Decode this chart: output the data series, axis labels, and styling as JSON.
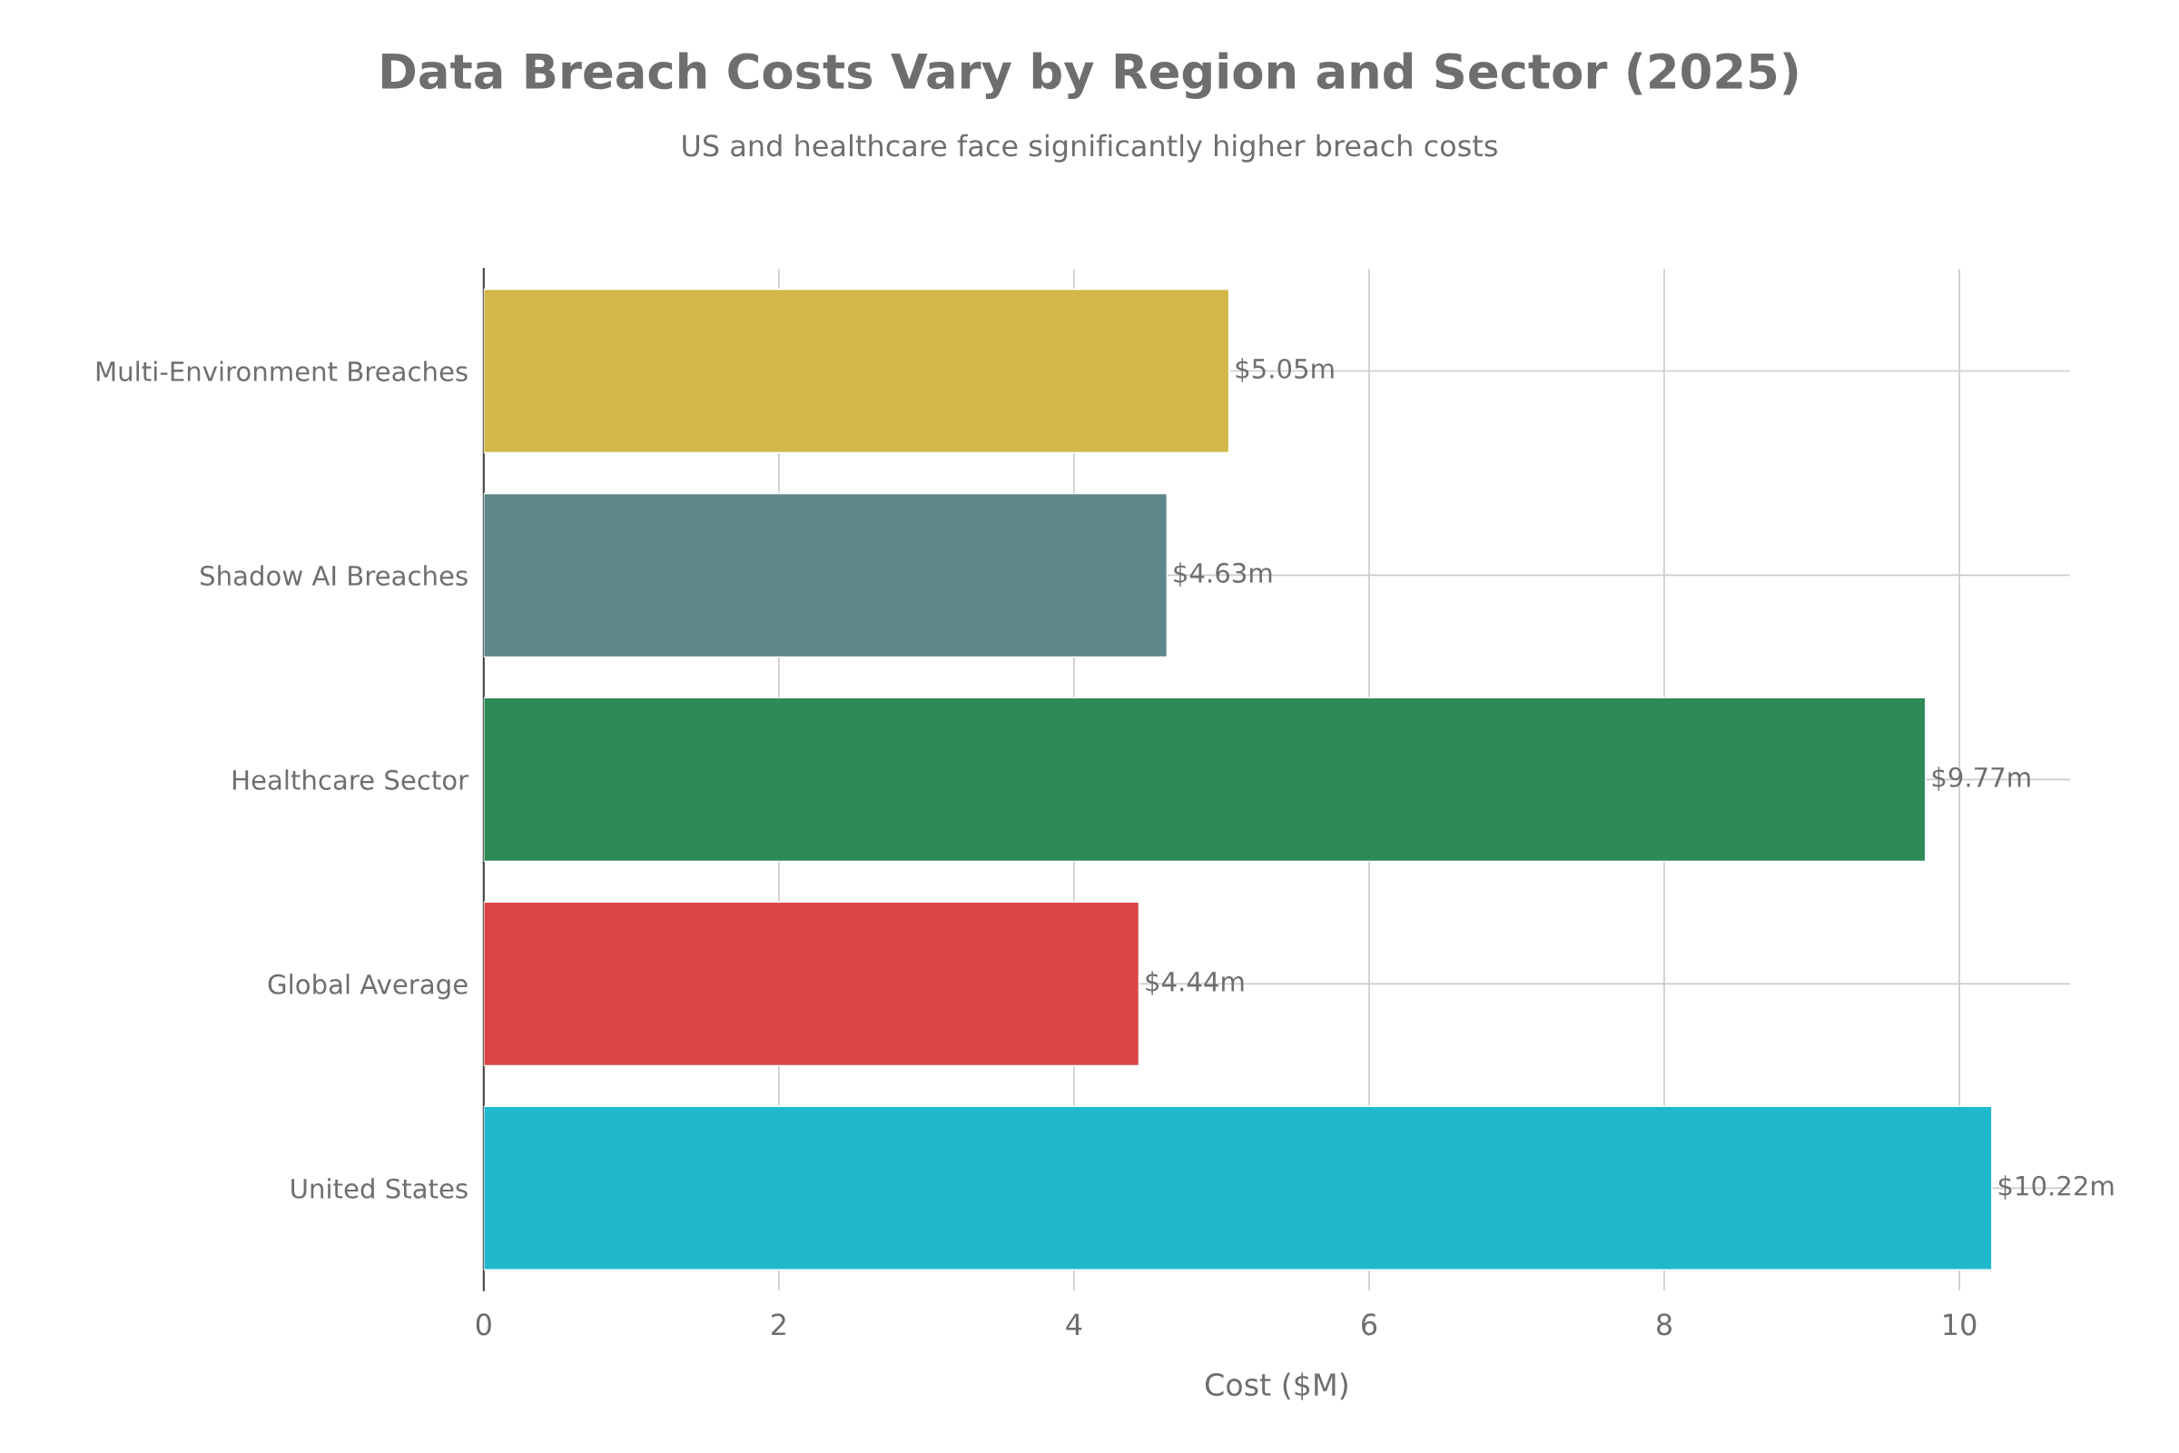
{
  "chart_data": {
    "type": "bar",
    "orientation": "horizontal",
    "title": "Data Breach Costs Vary by Region and Sector (2025)",
    "subtitle": "US and healthcare face significantly higher breach costs",
    "xlabel": "Cost ($M)",
    "categories": [
      "Multi-Environment Breaches",
      "Shadow AI Breaches",
      "Healthcare Sector",
      "Global Average",
      "United States"
    ],
    "values": [
      5.05,
      4.63,
      9.77,
      4.44,
      10.22
    ],
    "colors": [
      "#d2b84a",
      "#5e878a",
      "#2e8b57",
      "#db4545",
      "#1fb8cd"
    ],
    "value_labels": [
      "$5.05m",
      "$4.63m",
      "$9.77m",
      "$4.44m",
      "$10.22m"
    ],
    "xlim": [
      0,
      10.75
    ],
    "xticks": [
      0,
      2,
      4,
      6,
      8,
      10
    ],
    "grid": true
  }
}
